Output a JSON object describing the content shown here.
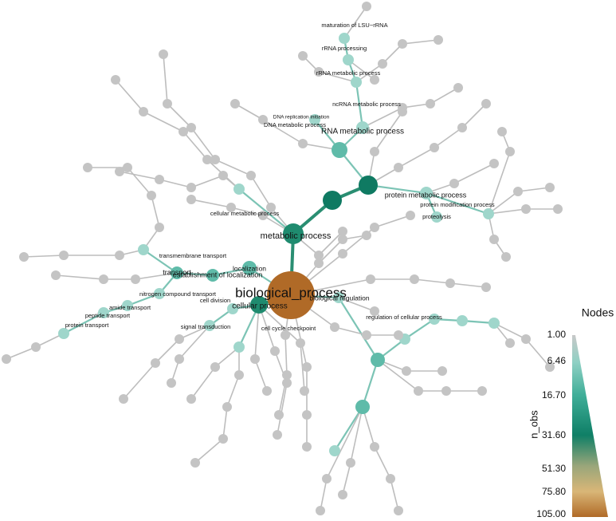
{
  "nodes": [
    {
      "label": "biological_process"
    },
    {
      "label": "metabolic process"
    },
    {
      "label": "RNA metabolic process"
    },
    {
      "label": "ncRNA metabolic process"
    },
    {
      "label": "rRNA metabolic process"
    },
    {
      "label": "rRNA processing"
    },
    {
      "label": "maturation of LSU−rRNA"
    },
    {
      "label": "DNA replication initiation"
    },
    {
      "label": "DNA metabolic process"
    },
    {
      "label": "protein metabolic process"
    },
    {
      "label": "protein modification process"
    },
    {
      "label": "proteolysis"
    },
    {
      "label": "cellular metabolic process"
    },
    {
      "label": "transmembrane transport"
    },
    {
      "label": "localization"
    },
    {
      "label": "transport"
    },
    {
      "label": "establishment of localization"
    },
    {
      "label": "nitrogen compound transport"
    },
    {
      "label": "amide transport"
    },
    {
      "label": "peptide transport"
    },
    {
      "label": "protein transport"
    },
    {
      "label": "cellular process"
    },
    {
      "label": "cell division"
    },
    {
      "label": "signal transduction"
    },
    {
      "label": "cell cycle checkpoint"
    },
    {
      "label": "biological regulation"
    },
    {
      "label": "regulation of cellular process"
    }
  ],
  "legend": {
    "title": "Nodes",
    "axis_label": "n_obs",
    "ticks": [
      "1.00",
      "6.46",
      "16.70",
      "31.60",
      "51.30",
      "75.80",
      "105.00"
    ]
  }
}
